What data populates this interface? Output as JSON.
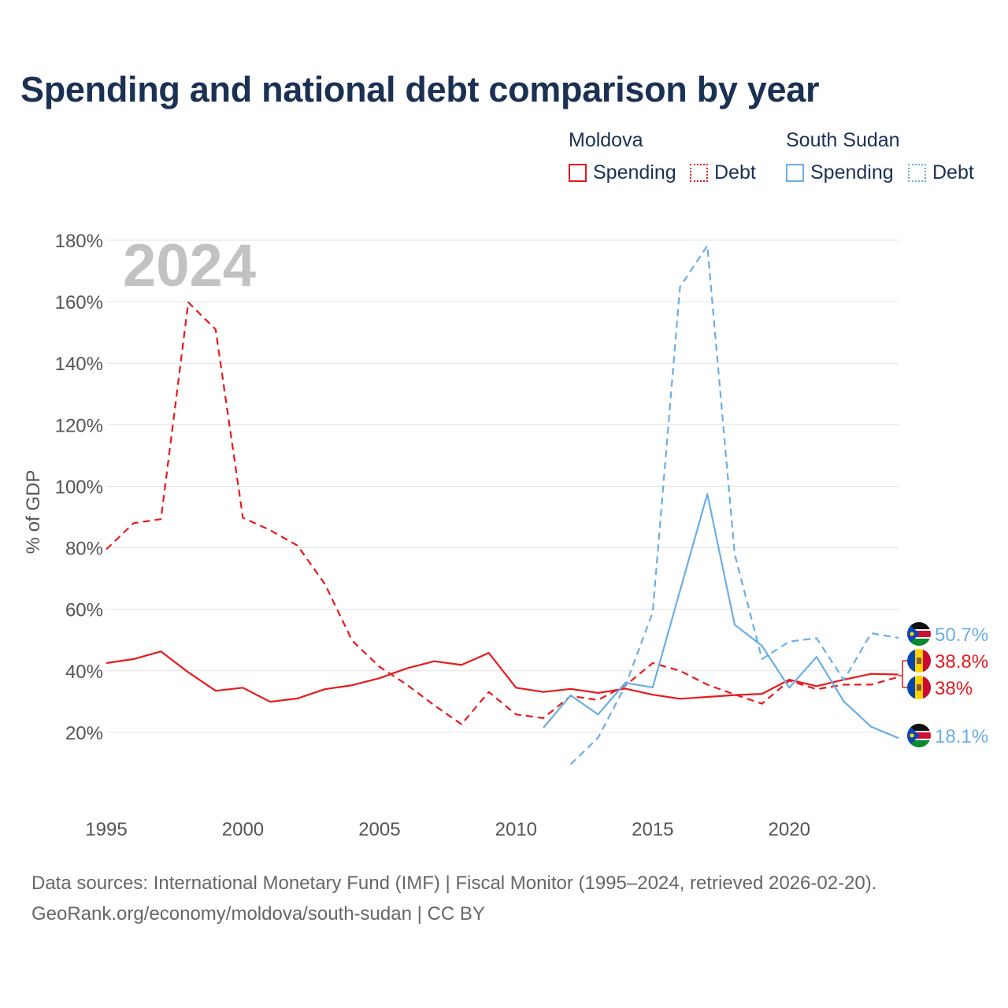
{
  "title": "Spending and national debt comparison by year",
  "legend": {
    "moldova": {
      "label": "Moldova",
      "spending": "Spending",
      "debt": "Debt"
    },
    "south_sudan": {
      "label": "South Sudan",
      "spending": "Spending",
      "debt": "Debt"
    }
  },
  "colors": {
    "moldova": "#e8191c",
    "south_sudan": "#6aaee5",
    "grid": "#e3e3e3",
    "axis_text": "#555555",
    "year_overlay": "#c2c2c2"
  },
  "footer": {
    "line1": "Data sources: International Monetary Fund (IMF) | Fiscal Monitor (1995–2024, retrieved 2026-02-20).",
    "line2": "GeoRank.org/economy/moldova/south-sudan | CC BY"
  },
  "chart_data": {
    "type": "line",
    "year_overlay": "2024",
    "ylabel": "% of GDP",
    "xlim": [
      1995,
      2024
    ],
    "ylim": [
      0,
      180
    ],
    "x_ticks": [
      1995,
      2000,
      2005,
      2010,
      2015,
      2020
    ],
    "y_ticks": [
      20,
      40,
      60,
      80,
      100,
      120,
      140,
      160,
      180
    ],
    "y_tick_labels": [
      "20%",
      "40%",
      "60%",
      "80%",
      "100%",
      "120%",
      "140%",
      "160%",
      "180%"
    ],
    "series": [
      {
        "name": "Moldova Spending",
        "country": "moldova",
        "style": "solid",
        "x": [
          1995,
          1996,
          1997,
          1998,
          1999,
          2000,
          2001,
          2002,
          2003,
          2004,
          2005,
          2006,
          2007,
          2008,
          2009,
          2010,
          2011,
          2012,
          2013,
          2014,
          2015,
          2016,
          2017,
          2018,
          2019,
          2020,
          2021,
          2022,
          2023,
          2024
        ],
        "values": [
          42.5,
          43.8,
          46.3,
          39.5,
          33.5,
          34.5,
          29.9,
          31.0,
          34.0,
          35.3,
          37.6,
          40.8,
          43.1,
          41.9,
          45.8,
          34.5,
          33.1,
          34.1,
          32.8,
          34.2,
          32.2,
          30.9,
          31.5,
          32.1,
          32.5,
          37.1,
          35.0,
          37.1,
          39.0,
          38.8
        ]
      },
      {
        "name": "Moldova Debt",
        "country": "moldova",
        "style": "dashed",
        "x": [
          1995,
          1996,
          1997,
          1998,
          1999,
          2000,
          2001,
          2002,
          2003,
          2004,
          2005,
          2006,
          2007,
          2008,
          2009,
          2010,
          2011,
          2012,
          2013,
          2014,
          2015,
          2016,
          2017,
          2018,
          2019,
          2020,
          2021,
          2022,
          2023,
          2024
        ],
        "values": [
          79.5,
          88.0,
          89.3,
          159.8,
          151.0,
          89.8,
          85.7,
          80.7,
          68.2,
          49.8,
          41.3,
          35.5,
          28.8,
          22.6,
          33.1,
          25.8,
          24.6,
          31.8,
          30.5,
          35.2,
          42.5,
          40.0,
          35.5,
          32.3,
          29.3,
          36.8,
          34.0,
          35.5,
          35.5,
          38.0
        ]
      },
      {
        "name": "South Sudan Spending",
        "country": "south_sudan",
        "style": "solid",
        "x": [
          2011,
          2012,
          2013,
          2014,
          2015,
          2016,
          2017,
          2018,
          2019,
          2020,
          2021,
          2022,
          2023,
          2024
        ],
        "values": [
          21.5,
          32.0,
          25.8,
          36.1,
          34.6,
          66.0,
          97.5,
          55.0,
          48.1,
          34.5,
          44.5,
          30.0,
          21.8,
          18.1
        ]
      },
      {
        "name": "South Sudan Debt",
        "country": "south_sudan",
        "style": "dashed",
        "x": [
          2012,
          2013,
          2014,
          2015,
          2016,
          2017,
          2018,
          2019,
          2020,
          2021,
          2022,
          2023,
          2024
        ],
        "values": [
          9.6,
          18.2,
          35.1,
          59.0,
          164.8,
          178.2,
          78.0,
          43.8,
          49.5,
          50.6,
          37.0,
          52.2,
          50.7
        ]
      }
    ],
    "end_labels": [
      {
        "text": "50.7%",
        "value": 50.7,
        "country": "south_sudan",
        "flag": "south-sudan-flag"
      },
      {
        "text": "38.8%",
        "value": 38.8,
        "country": "moldova",
        "flag": "moldova-flag"
      },
      {
        "text": "38%",
        "value": 38.0,
        "country": "moldova",
        "flag": "moldova-flag"
      },
      {
        "text": "18.1%",
        "value": 18.1,
        "country": "south_sudan",
        "flag": "south-sudan-flag"
      }
    ]
  }
}
